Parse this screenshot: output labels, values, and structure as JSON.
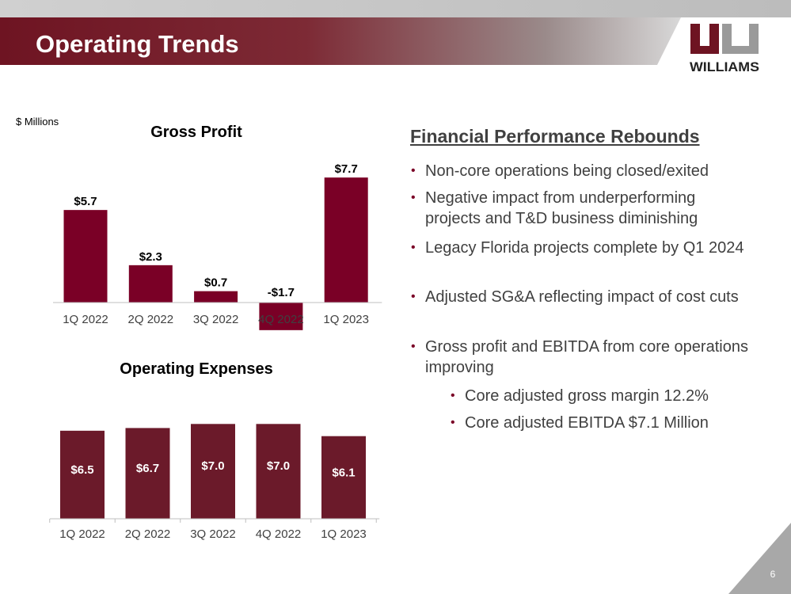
{
  "header": {
    "title": "Operating Trends",
    "logo": "WILLIAMS"
  },
  "units": "$ Millions",
  "chart_data": [
    {
      "type": "bar",
      "title": "Gross Profit",
      "color": "#7a0026",
      "categories": [
        "1Q 2022",
        "2Q 2022",
        "3Q 2022",
        "4Q 2022",
        "1Q 2023"
      ],
      "values": [
        5.7,
        2.3,
        0.7,
        -1.7,
        7.7
      ],
      "value_labels": [
        "$5.7",
        "$2.3",
        "$0.7",
        "-$1.7",
        "$7.7"
      ]
    },
    {
      "type": "bar",
      "title": "Operating Expenses",
      "color": "#6b1a2a",
      "categories": [
        "1Q 2022",
        "2Q 2022",
        "3Q 2022",
        "4Q 2022",
        "1Q 2023"
      ],
      "values": [
        6.5,
        6.7,
        7.0,
        7.0,
        6.1
      ],
      "value_labels": [
        "$6.5",
        "$6.7",
        "$7.0",
        "$7.0",
        "$6.1"
      ]
    }
  ],
  "summary": {
    "heading": "Financial Performance Rebounds",
    "bullets": [
      "Non-core operations being closed/exited",
      "Negative impact from underperforming projects and T&D business diminishing",
      "Legacy Florida projects complete by Q1 2024",
      "Adjusted SG&A reflecting impact of cost cuts",
      "Gross profit and EBITDA from core operations improving"
    ],
    "sub_bullets": [
      "Core adjusted gross margin 12.2%",
      "Core adjusted EBITDA $7.1 Million"
    ]
  },
  "page_number": "6"
}
